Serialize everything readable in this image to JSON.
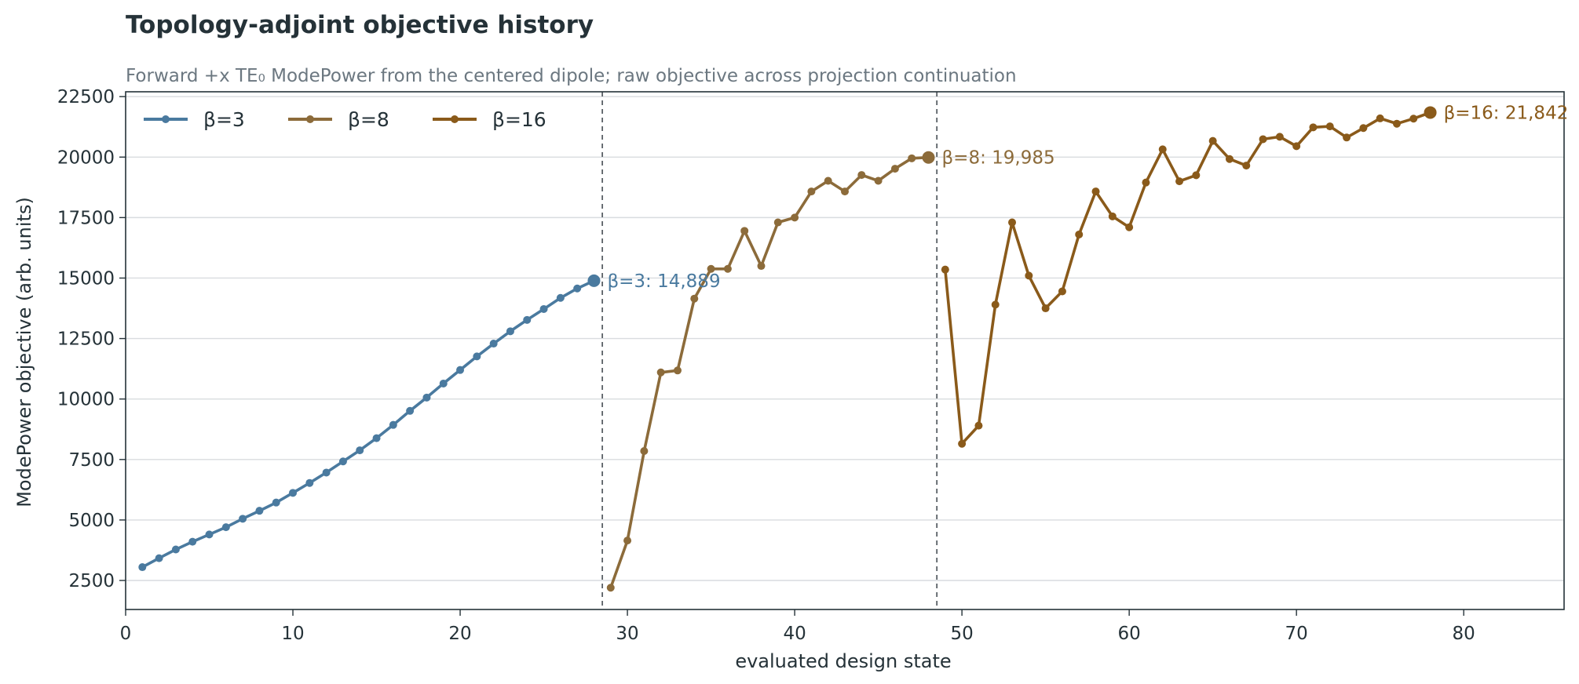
{
  "chart_data": {
    "type": "line",
    "title": "Topology-adjoint objective history",
    "subtitle": "Forward +x TE₀ ModePower from the centered dipole; raw objective across projection continuation",
    "xlabel": "evaluated design state",
    "ylabel": "ModePower objective (arb. units)",
    "xlim": [
      0,
      86
    ],
    "ylim": [
      1300,
      22700
    ],
    "xticks": [
      0,
      10,
      20,
      30,
      40,
      50,
      60,
      70,
      80
    ],
    "yticks": [
      2500,
      5000,
      7500,
      10000,
      12500,
      15000,
      17500,
      20000,
      22500
    ],
    "grid": "horizontal",
    "legend_position": "top-left",
    "boundaries": [
      28.5,
      48.5
    ],
    "series": [
      {
        "name": "β=3",
        "color": "#4a7a9f",
        "x": [
          1,
          2,
          3,
          4,
          5,
          6,
          7,
          8,
          9,
          10,
          11,
          12,
          13,
          14,
          15,
          16,
          17,
          18,
          19,
          20,
          21,
          22,
          23,
          24,
          25,
          26,
          27,
          28
        ],
        "y": [
          3050,
          3420,
          3780,
          4100,
          4400,
          4700,
          5050,
          5380,
          5720,
          6120,
          6530,
          6960,
          7420,
          7880,
          8380,
          8930,
          9510,
          10060,
          10640,
          11200,
          11760,
          12290,
          12800,
          13270,
          13720,
          14180,
          14570,
          14889
        ],
        "end_label": "β=3: 14,889"
      },
      {
        "name": "β=8",
        "color": "#8c6b3a",
        "x": [
          29,
          30,
          31,
          32,
          33,
          34,
          35,
          36,
          37,
          38,
          39,
          40,
          41,
          42,
          43,
          44,
          45,
          46,
          47,
          48
        ],
        "y": [
          2200,
          4150,
          7850,
          11100,
          11180,
          14150,
          15380,
          15380,
          16950,
          15500,
          17300,
          17500,
          18580,
          19020,
          18580,
          19260,
          19020,
          19520,
          19950,
          19985
        ],
        "end_label": "β=8: 19,985"
      },
      {
        "name": "β=16",
        "color": "#8a5a1a",
        "x": [
          49,
          50,
          51,
          52,
          53,
          54,
          55,
          56,
          57,
          58,
          59,
          60,
          61,
          62,
          63,
          64,
          65,
          66,
          67,
          68,
          69,
          70,
          71,
          72,
          73,
          74,
          75,
          76,
          77,
          78
        ],
        "y": [
          15350,
          8150,
          8900,
          13900,
          17300,
          15100,
          13750,
          14450,
          16800,
          18580,
          17550,
          17100,
          18950,
          20320,
          19000,
          19250,
          20670,
          19920,
          19650,
          20740,
          20840,
          20450,
          21230,
          21270,
          20810,
          21200,
          21600,
          21380,
          21590,
          21842
        ],
        "end_label": "β=16: 21,842"
      }
    ]
  },
  "colors": {
    "grid": "#d9dcdf",
    "axis": "#253238",
    "boundary": "#5a6066"
  }
}
